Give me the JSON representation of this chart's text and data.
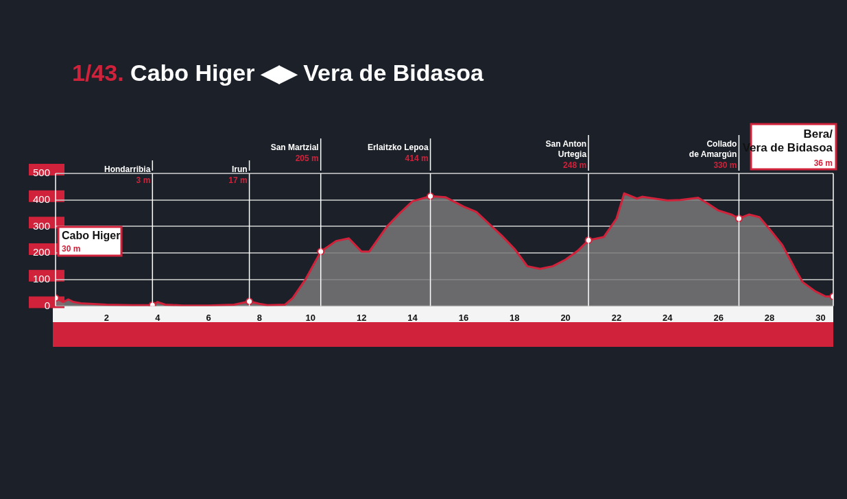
{
  "chart_data": {
    "type": "area",
    "title": "1/43. Cabo Higer ◀▶ Vera de Bidasoa",
    "xlim": [
      0,
      30.5
    ],
    "xticks": [
      2,
      4,
      6,
      8,
      10,
      12,
      14,
      16,
      18,
      20,
      22,
      24,
      26,
      28,
      30
    ],
    "ylim": [
      0,
      500
    ],
    "yticks": [
      0,
      100,
      200,
      300,
      400,
      500
    ],
    "grid": "y",
    "legend": false,
    "series": [
      {
        "color": "#d0223a",
        "x": [
          0,
          0.3,
          0.5,
          0.7,
          1,
          2,
          3,
          3.8,
          4,
          4.3,
          5,
          6,
          7,
          7.6,
          8,
          8.3,
          9,
          9.3,
          9.8,
          10.4,
          11,
          11.5,
          12,
          12.3,
          13,
          13.5,
          14,
          14.7,
          15.3,
          16,
          16.5,
          17,
          17.5,
          18,
          18.5,
          19,
          19.5,
          20,
          20.5,
          20.9,
          21.5,
          22,
          22.3,
          22.8,
          23,
          23.5,
          24,
          24.5,
          25.2,
          25.6,
          26,
          26.5,
          26.8,
          27.2,
          27.6,
          28,
          28.5,
          29,
          29.3,
          29.8,
          30.2,
          30.5
        ],
        "values": [
          30,
          15,
          25,
          15,
          10,
          5,
          3,
          3,
          15,
          5,
          2,
          2,
          5,
          17,
          8,
          3,
          5,
          30,
          100,
          205,
          245,
          255,
          205,
          205,
          300,
          350,
          395,
          414,
          410,
          375,
          355,
          310,
          265,
          215,
          150,
          140,
          150,
          175,
          210,
          248,
          260,
          330,
          425,
          405,
          412,
          405,
          398,
          400,
          408,
          385,
          360,
          345,
          330,
          345,
          335,
          290,
          230,
          140,
          90,
          55,
          36,
          36
        ]
      },
      {
        "type": "scatter",
        "marker": "circle",
        "color": "#ffffff",
        "x": [
          0,
          3.8,
          7.6,
          10.4,
          14.7,
          20.9,
          26.8,
          30.5
        ],
        "values": [
          30,
          3,
          17,
          205,
          414,
          248,
          330,
          36
        ]
      }
    ],
    "ref_lines": [
      {
        "axis": "x",
        "value": 0,
        "label": "Cabo Higer"
      },
      {
        "axis": "x",
        "value": 3.8,
        "label": "Hondarribia"
      },
      {
        "axis": "x",
        "value": 7.6,
        "label": "Irun"
      },
      {
        "axis": "x",
        "value": 10.4,
        "label": "San Martzial"
      },
      {
        "axis": "x",
        "value": 14.7,
        "label": "Erlaitzko Lepoa"
      },
      {
        "axis": "x",
        "value": 20.9,
        "label": "San Anton\nUrtegia"
      },
      {
        "axis": "x",
        "value": 26.8,
        "label": "Collado\nde Amargún"
      },
      {
        "axis": "x",
        "value": 30.5,
        "label": "Bera/\nVera de Bidasoa"
      }
    ],
    "annotations": [
      "30 m",
      "3 m",
      "17 m",
      "205 m",
      "414 m",
      "248 m",
      "330 m",
      "36 m"
    ]
  }
}
